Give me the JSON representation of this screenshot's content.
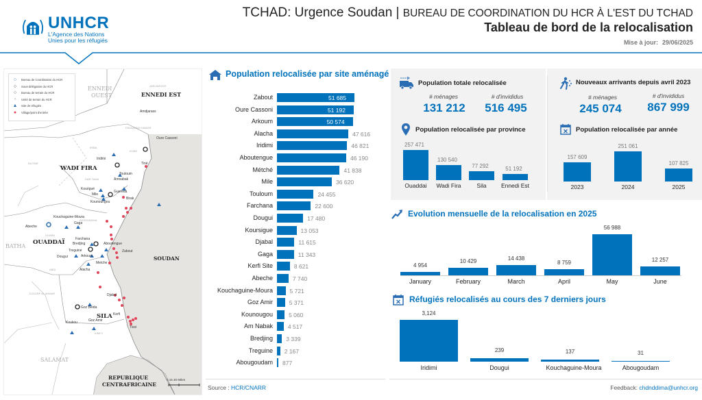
{
  "header": {
    "logo_name": "UNHCR",
    "logo_sub_1": "L'Agence des Nations",
    "logo_sub_2": "Unies pour les réfugiés",
    "title_main": "TCHAD: Urgence Soudan | ",
    "title_sub": "BUREAU DE COORDINATION DU HCR À L'EST DU TCHAD",
    "subtitle": "Tableau de bord de la relocalisation",
    "update_label": "Mise à jour:",
    "update_date": "29/06/2025"
  },
  "map": {
    "legend": [
      {
        "label": "Bureau de Coordination du HCR",
        "icon": "circle-blue-icon"
      },
      {
        "label": "Sous-délégation du HCR",
        "icon": "circle-black-icon"
      },
      {
        "label": "Bureau de terrain du HCR",
        "icon": "circle-dark-icon"
      },
      {
        "label": "Unité de terrain du HCR",
        "icon": "circle-small-icon"
      },
      {
        "label": "Site de réfugiés",
        "icon": "tent-icon"
      },
      {
        "label": "Village/point d'entrée",
        "icon": "pin-icon"
      }
    ],
    "regions": [
      "ENNEDI EST",
      "WADI FIRA",
      "OUADDAÏ",
      "SILA",
      "SOUDAN",
      "REPUBLIQUE",
      "CENTRAFRICAINE"
    ],
    "regions_grey": [
      "ENNEDI",
      "OUEST",
      "BATHA",
      "SALAMAT"
    ],
    "departments": [
      "AMDJARASS",
      "KOBE",
      "IRIBA",
      "BILTINE",
      "DAR TAMA",
      "ASSOUNGHA",
      "OUARA",
      "ABDI",
      "DJOURF AL AHMAR",
      "KIMITI",
      "FADA/WADI HAWAR"
    ],
    "places": [
      "Amdjarass",
      "Oure Cassoni",
      "Iridimi",
      "Tiné",
      "Touloum",
      "Amnabak",
      "Kounoungou",
      "Mile",
      "Kourigué",
      "Guereda",
      "Birak",
      "Adré",
      "Abeche",
      "Gaga",
      "Farchana",
      "Bredjing",
      "Treguine",
      "Dougui",
      "Arkoum",
      "Metche",
      "Alacha",
      "Adré",
      "Goz Beida",
      "Goz Amir",
      "Koukou",
      "Tissi",
      "Kouchaguine-Moura",
      "Zabout",
      "Djabal",
      "Aboutengue",
      "Kerfi"
    ],
    "scale": "0  15  30       60km"
  },
  "sites_chart": {
    "title": "Population relocalisée par site aménagé",
    "items": [
      {
        "name": "Zabout",
        "value": 51685,
        "label": "51 685"
      },
      {
        "name": "Oure Cassoni",
        "value": 51192,
        "label": "51 192"
      },
      {
        "name": "Arkoum",
        "value": 50574,
        "label": "50 574"
      },
      {
        "name": "Alacha",
        "value": 47616,
        "label": "47 616"
      },
      {
        "name": "Iridimi",
        "value": 46821,
        "label": "46 821"
      },
      {
        "name": "Aboutengue",
        "value": 46190,
        "label": "46 190"
      },
      {
        "name": "Métché",
        "value": 41838,
        "label": "41 838"
      },
      {
        "name": "Mile",
        "value": 36620,
        "label": "36 620"
      },
      {
        "name": "Touloum",
        "value": 24455,
        "label": "24 455"
      },
      {
        "name": "Farchana",
        "value": 22600,
        "label": "22 600"
      },
      {
        "name": "Dougui",
        "value": 17480,
        "label": "17 480"
      },
      {
        "name": "Koursigue",
        "value": 13053,
        "label": "13 053"
      },
      {
        "name": "Djabal",
        "value": 11615,
        "label": "11 615"
      },
      {
        "name": "Gaga",
        "value": 11343,
        "label": "11 343"
      },
      {
        "name": "Kerfi Site",
        "value": 8621,
        "label": "8 621"
      },
      {
        "name": "Abeche",
        "value": 7740,
        "label": "7 740"
      },
      {
        "name": "Kouchaguine-Moura",
        "value": 5721,
        "label": "5 721"
      },
      {
        "name": "Goz Amir",
        "value": 5371,
        "label": "5 371"
      },
      {
        "name": "Kounougou",
        "value": 5060,
        "label": "5 060"
      },
      {
        "name": "Am Nabak",
        "value": 4517,
        "label": "4 517"
      },
      {
        "name": "Bredjing",
        "value": 3339,
        "label": "3 339"
      },
      {
        "name": "Treguine",
        "value": 2167,
        "label": "2 167"
      },
      {
        "name": "Abougoudam",
        "value": 877,
        "label": "877"
      }
    ]
  },
  "total_panel": {
    "title": "Population totale relocalisée",
    "menages_label": "# ménages",
    "menages_value": "131 212",
    "individus_label": "# d'invididus",
    "individus_value": "516 495",
    "province_title": "Population relocalisée par province",
    "provinces": [
      {
        "name": "Ouaddai",
        "value": 257471,
        "label": "257 471"
      },
      {
        "name": "Wadi Fira",
        "value": 130540,
        "label": "130 540"
      },
      {
        "name": "Sila",
        "value": 77292,
        "label": "77 292"
      },
      {
        "name": "Ennedi Est",
        "value": 51192,
        "label": "51 192"
      }
    ]
  },
  "arrivals_panel": {
    "title": "Nouveaux arrivants depuis avril 2023",
    "menages_label": "# ménages",
    "menages_value": "245 074",
    "individus_label": "# d'invididus",
    "individus_value": "867 999",
    "year_title": "Population relocalisée par année",
    "years": [
      {
        "name": "2023",
        "value": 157609,
        "label": "157 609"
      },
      {
        "name": "2024",
        "value": 251061,
        "label": "251 061"
      },
      {
        "name": "2025",
        "value": 107825,
        "label": "107 825"
      }
    ]
  },
  "monthly": {
    "title": "Evolution mensuelle de la relocalisation en 2025",
    "items": [
      {
        "name": "January",
        "value": 4954,
        "label": "4 954"
      },
      {
        "name": "February",
        "value": 10429,
        "label": "10 429"
      },
      {
        "name": "March",
        "value": 14438,
        "label": "14 438"
      },
      {
        "name": "April",
        "value": 8759,
        "label": "8 759"
      },
      {
        "name": "May",
        "value": 56988,
        "label": "56 988"
      },
      {
        "name": "June",
        "value": 12257,
        "label": "12 257"
      }
    ]
  },
  "last7": {
    "title": "Réfugiés relocalisés au cours des 7 derniers jours",
    "items": [
      {
        "name": "Iridimi",
        "value": 3124,
        "label": "3,124"
      },
      {
        "name": "Dougui",
        "value": 239,
        "label": "239"
      },
      {
        "name": "Kouchaguine-Moura",
        "value": 137,
        "label": "137"
      },
      {
        "name": "Abougoudam",
        "value": 31,
        "label": "31"
      }
    ]
  },
  "footer": {
    "source_label": "Source :",
    "source_value": "HCR/CNARR",
    "feedback_label": "Feedback:",
    "feedback_value": "chdnddima@unhcr.org"
  },
  "colors": {
    "brand": "#0072bc",
    "pin": "#e0455a",
    "panel_bg": "#f2f2f2"
  }
}
